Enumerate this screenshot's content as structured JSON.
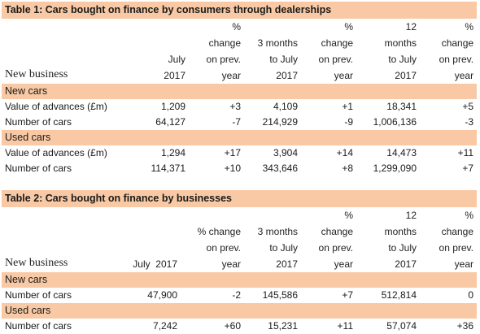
{
  "table1": {
    "title": "Table 1: Cars bought on finance by consumers through dealerships",
    "headers": {
      "new_business": "New business",
      "col1": [
        "July",
        "2017"
      ],
      "col2": [
        "%",
        "change",
        "on prev.",
        "year"
      ],
      "col3": [
        "3 months",
        "to July",
        "2017"
      ],
      "col4": [
        "%",
        "change",
        "on prev.",
        "year"
      ],
      "col5": [
        "12",
        "months",
        "to July",
        "2017"
      ],
      "col6": [
        "%",
        "change",
        "on prev.",
        "year"
      ]
    },
    "sections": [
      {
        "name": "New cars",
        "rows": [
          {
            "label": "Value of advances (£m)",
            "values": [
              "1,209",
              "+3",
              "4,109",
              "+1",
              "18,341",
              "+5"
            ]
          },
          {
            "label": "Number of cars",
            "values": [
              "64,127",
              "-7",
              "214,929",
              "-9",
              "1,006,136",
              "-3"
            ]
          }
        ]
      },
      {
        "name": "Used cars",
        "rows": [
          {
            "label": "Value of advances (£m)",
            "values": [
              "1,294",
              "+17",
              "3,904",
              "+14",
              "14,473",
              "+11"
            ]
          },
          {
            "label": "Number of cars",
            "values": [
              "114,371",
              "+10",
              "343,646",
              "+8",
              "1,299,090",
              "+7"
            ]
          }
        ]
      }
    ]
  },
  "table2": {
    "title": "Table 2: Cars bought on finance by businesses",
    "headers": {
      "new_business": "New business",
      "col1": [
        "July  2017"
      ],
      "col2": [
        "% change",
        "on prev.",
        "year"
      ],
      "col3": [
        "3 months",
        "to July",
        "2017"
      ],
      "col4": [
        "%",
        "change",
        "on prev.",
        "year"
      ],
      "col5": [
        "12",
        "months",
        "to July",
        "2017"
      ],
      "col6": [
        "%",
        "change",
        "on prev.",
        "year"
      ]
    },
    "sections": [
      {
        "name": "New cars",
        "rows": [
          {
            "label": "Number of cars",
            "values": [
              "47,900",
              "-2",
              "145,586",
              "+7",
              "512,814",
              "0"
            ]
          }
        ]
      },
      {
        "name": "Used cars",
        "rows": [
          {
            "label": "Number of cars",
            "values": [
              "7,242",
              "+60",
              "15,231",
              "+11",
              "57,074",
              "+36"
            ]
          }
        ]
      }
    ]
  },
  "colors": {
    "band": "#f8c9a4"
  }
}
